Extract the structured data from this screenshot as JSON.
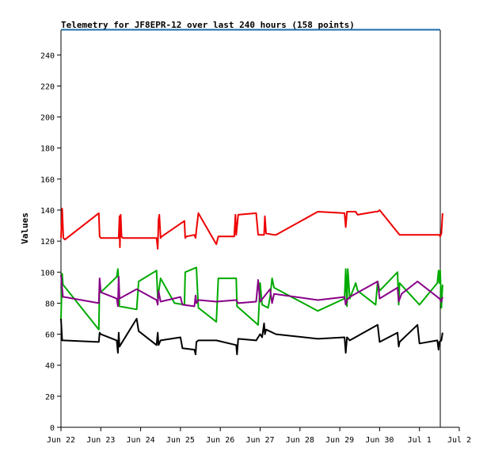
{
  "chart_data": {
    "type": "line",
    "title": "Telemetry for JF8EPR-12 over last 240 hours (158 points)",
    "xlabel": "",
    "ylabel": "Values",
    "ylim": [
      0,
      256
    ],
    "xlim": [
      0,
      10
    ],
    "xticks": [
      {
        "x": 0,
        "label": "Jun 22"
      },
      {
        "x": 1,
        "label": "Jun 23"
      },
      {
        "x": 2,
        "label": "Jun 24"
      },
      {
        "x": 3,
        "label": "Jun 25"
      },
      {
        "x": 4,
        "label": "Jun 26"
      },
      {
        "x": 5,
        "label": "Jun 27"
      },
      {
        "x": 6,
        "label": "Jun 28"
      },
      {
        "x": 7,
        "label": "Jun 29"
      },
      {
        "x": 8,
        "label": "Jun 30"
      },
      {
        "x": 9,
        "label": "Jul 1"
      },
      {
        "x": 10,
        "label": "Jul 2"
      }
    ],
    "yticks": [
      0,
      20,
      40,
      60,
      80,
      100,
      120,
      140,
      160,
      180,
      200,
      220,
      240
    ],
    "grid": false,
    "legend": "none",
    "colors": [
      "#ee0000",
      "#00aa00",
      "#880088",
      "#000000"
    ],
    "series": [
      {
        "color": "#ee0000",
        "x": [
          0.0,
          0.03,
          0.06,
          0.1,
          0.95,
          0.97,
          1.0,
          1.45,
          1.47,
          1.48,
          1.5,
          1.52,
          1.55,
          1.9,
          1.95,
          2.4,
          2.43,
          2.45,
          2.47,
          2.5,
          2.53,
          3.1,
          3.12,
          3.15,
          3.35,
          3.38,
          3.4,
          3.45,
          3.9,
          3.95,
          4.0,
          4.35,
          4.38,
          4.4,
          4.45,
          4.9,
          4.95,
          5.1,
          5.12,
          5.15,
          5.35,
          5.4,
          6.45,
          7.12,
          7.15,
          7.18,
          7.4,
          7.42,
          7.45,
          7.9,
          7.95,
          8.0,
          8.5,
          9.5,
          9.52,
          9.55,
          9.58
        ],
        "y": [
          122,
          141,
          122,
          121,
          138,
          123,
          122,
          122,
          136,
          116,
          137,
          123,
          122,
          122,
          122,
          122,
          115,
          134,
          137,
          122,
          123,
          133,
          122,
          123,
          124,
          122,
          127,
          138,
          118,
          123,
          123,
          123,
          137,
          124,
          137,
          138,
          124,
          124,
          136,
          125,
          124,
          124,
          139,
          138,
          129,
          139,
          139,
          138,
          137,
          139,
          139,
          140,
          124,
          124,
          123,
          125,
          138
        ]
      },
      {
        "color": "#00aa00",
        "x": [
          0.0,
          0.03,
          0.05,
          0.95,
          0.97,
          1.0,
          1.4,
          1.43,
          1.45,
          1.47,
          1.9,
          1.95,
          2.4,
          2.43,
          2.5,
          2.85,
          3.1,
          3.12,
          3.4,
          3.45,
          3.9,
          3.95,
          4.4,
          4.42,
          4.95,
          5.0,
          5.05,
          5.2,
          5.25,
          5.3,
          5.35,
          6.45,
          7.12,
          7.15,
          7.18,
          7.2,
          7.25,
          7.4,
          7.45,
          7.9,
          7.95,
          8.0,
          8.45,
          8.48,
          8.5,
          9.0,
          9.45,
          9.48,
          9.5,
          9.52,
          9.55,
          9.58
        ],
        "y": [
          70,
          99,
          92,
          63,
          93,
          87,
          97,
          102,
          94,
          78,
          76,
          94,
          101,
          83,
          96,
          80,
          79,
          100,
          103,
          77,
          68,
          96,
          96,
          78,
          66,
          93,
          79,
          77,
          84,
          96,
          90,
          75,
          83,
          102,
          78,
          102,
          83,
          93,
          88,
          79,
          94,
          88,
          100,
          79,
          93,
          79,
          93,
          101,
          93,
          101,
          77,
          92
        ]
      },
      {
        "color": "#880088",
        "x": [
          0.0,
          0.05,
          0.08,
          0.95,
          0.97,
          1.0,
          1.4,
          1.43,
          1.45,
          1.47,
          1.9,
          2.4,
          2.43,
          2.45,
          2.5,
          3.0,
          3.05,
          3.35,
          3.38,
          3.4,
          3.45,
          3.9,
          4.4,
          4.45,
          4.9,
          4.95,
          5.0,
          5.25,
          5.3,
          5.35,
          6.45,
          7.12,
          7.15,
          7.18,
          7.25,
          7.95,
          8.0,
          8.45,
          8.48,
          8.55,
          8.95,
          9.45,
          9.5,
          9.55,
          9.58
        ],
        "y": [
          98,
          84,
          84,
          80,
          96,
          87,
          83,
          78,
          97,
          83,
          89,
          82,
          79,
          88,
          81,
          84,
          79,
          78,
          85,
          80,
          82,
          81,
          82,
          80,
          81,
          95,
          81,
          89,
          80,
          86,
          82,
          84,
          79,
          82,
          84,
          94,
          83,
          90,
          81,
          86,
          94,
          84,
          83,
          81,
          84
        ]
      },
      {
        "color": "#000000",
        "x": [
          0.0,
          0.03,
          0.06,
          0.95,
          0.97,
          1.0,
          1.4,
          1.43,
          1.45,
          1.47,
          1.9,
          1.95,
          2.4,
          2.43,
          2.45,
          2.5,
          3.0,
          3.05,
          3.35,
          3.38,
          3.4,
          3.45,
          3.9,
          4.4,
          4.42,
          4.45,
          4.9,
          5.0,
          5.05,
          5.1,
          5.12,
          5.15,
          5.4,
          6.45,
          7.12,
          7.15,
          7.18,
          7.25,
          7.95,
          8.0,
          8.45,
          8.48,
          8.5,
          8.95,
          9.0,
          9.45,
          9.48,
          9.5,
          9.55,
          9.58
        ],
        "y": [
          70,
          56,
          56,
          55,
          61,
          60,
          56,
          48,
          61,
          52,
          70,
          62,
          53,
          61,
          53,
          56,
          58,
          51,
          50,
          47,
          55,
          56,
          56,
          53,
          47,
          57,
          56,
          60,
          58,
          67,
          60,
          63,
          60,
          57,
          58,
          48,
          58,
          56,
          66,
          55,
          61,
          52,
          55,
          66,
          54,
          56,
          50,
          55,
          56,
          61
        ]
      }
    ]
  }
}
